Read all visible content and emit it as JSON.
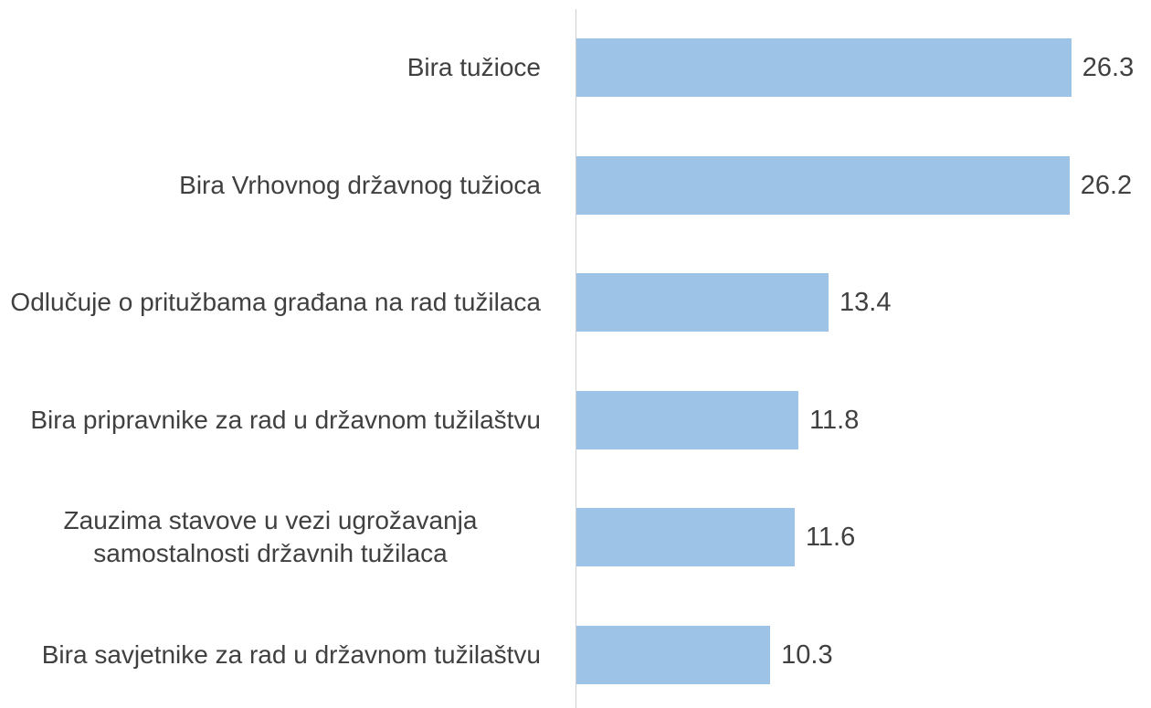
{
  "chart_data": {
    "type": "bar",
    "orientation": "horizontal",
    "categories": [
      "Bira tužioce",
      "Bira Vrhovnog državnog tužioca",
      "Odlučuje o pritužbama građana na rad tužilaca",
      "Bira pripravnike za rad u državnom tužilaštvu",
      "Zauzima stavove u vezi ugrožavanja samostalnosti državnih tužilaca",
      "Bira savjetnike za rad u državnom tužilaštvu"
    ],
    "values": [
      26.3,
      26.2,
      13.4,
      11.8,
      11.6,
      10.3
    ],
    "color": "#9dc3e6",
    "xlim": [
      0,
      30
    ]
  }
}
